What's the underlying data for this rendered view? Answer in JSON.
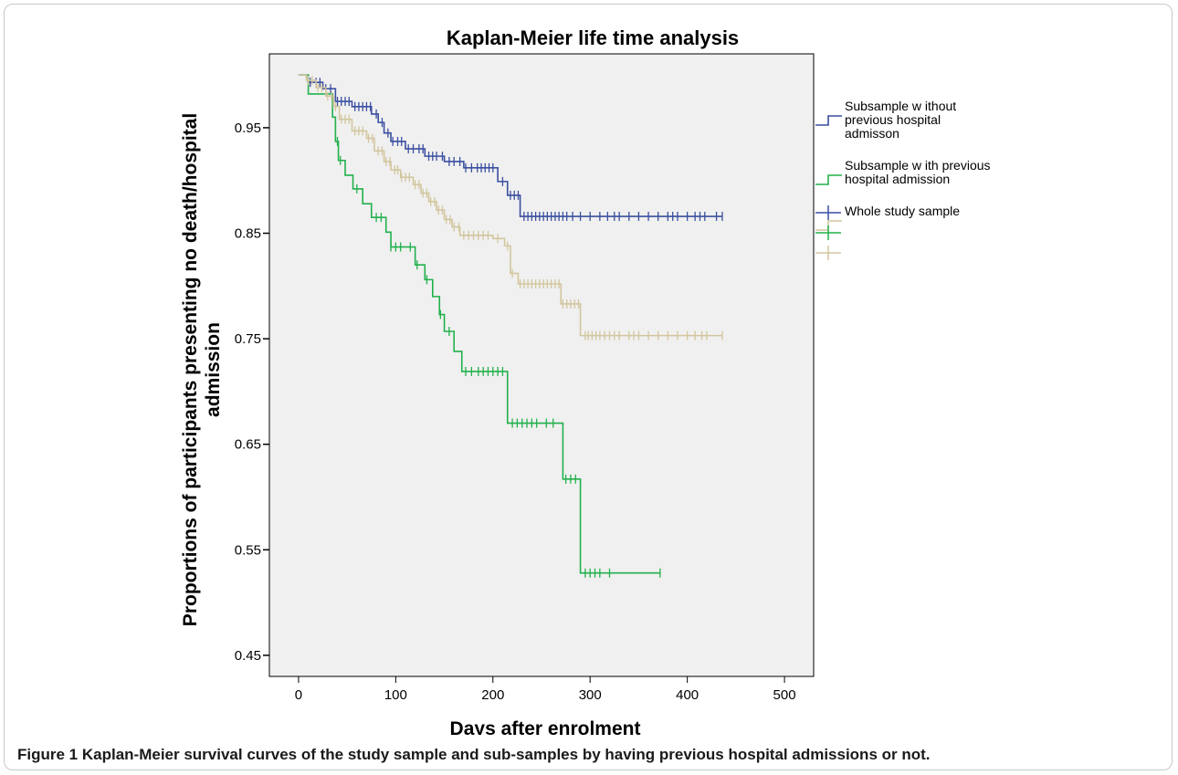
{
  "caption": {
    "label": "Figure 1",
    "text": "Kaplan-Meier survival curves of the study sample and sub-samples by having previous hospital admissions or not."
  },
  "chart_data": {
    "type": "line",
    "title": "Kaplan-Meier life time analysis",
    "xlabel": "Days after enrolment",
    "ylabel_lines": [
      "Proportions of participants presenting no death/hospital",
      "admission"
    ],
    "xlim": [
      -30,
      530
    ],
    "ylim": [
      0.43,
      1.02
    ],
    "xticks": [
      0,
      100,
      200,
      300,
      400,
      500
    ],
    "yticks": [
      0.45,
      0.55,
      0.65,
      0.75,
      0.85,
      0.95
    ],
    "ytick_labels": [
      "0.45",
      "0.55",
      "0.65",
      "0.75",
      "0.85",
      "0.95"
    ],
    "plot_background": "#f0f0f0",
    "grid": false,
    "legend_placement": "right",
    "series": [
      {
        "legend_lines": [
          "Subsample w ithout",
          "previous hospital",
          "admisson"
        ],
        "color": "#3a4fa0",
        "steps": [
          [
            0,
            1.0
          ],
          [
            10,
            0.993
          ],
          [
            25,
            0.987
          ],
          [
            38,
            0.975
          ],
          [
            55,
            0.97
          ],
          [
            75,
            0.963
          ],
          [
            82,
            0.955
          ],
          [
            88,
            0.945
          ],
          [
            95,
            0.937
          ],
          [
            110,
            0.93
          ],
          [
            130,
            0.923
          ],
          [
            150,
            0.918
          ],
          [
            170,
            0.912
          ],
          [
            205,
            0.899
          ],
          [
            215,
            0.886
          ],
          [
            228,
            0.866
          ],
          [
            436,
            0.866
          ]
        ],
        "censor_x": [
          12,
          18,
          22,
          28,
          33,
          40,
          44,
          48,
          52,
          58,
          62,
          66,
          70,
          74,
          80,
          86,
          92,
          97,
          102,
          106,
          113,
          118,
          124,
          128,
          134,
          138,
          142,
          148,
          155,
          160,
          166,
          172,
          178,
          184,
          188,
          192,
          196,
          200,
          210,
          218,
          222,
          226,
          232,
          236,
          240,
          244,
          248,
          252,
          256,
          260,
          264,
          268,
          272,
          276,
          282,
          290,
          300,
          310,
          318,
          325,
          330,
          340,
          350,
          360,
          370,
          380,
          385,
          390,
          400,
          408,
          413,
          418,
          430,
          436
        ]
      },
      {
        "legend_lines": [
          "Subsample w ith previous",
          "hospital admission"
        ],
        "color": "#22b14c",
        "steps": [
          [
            0,
            1.0
          ],
          [
            10,
            0.982
          ],
          [
            35,
            0.96
          ],
          [
            38,
            0.937
          ],
          [
            41,
            0.919
          ],
          [
            48,
            0.905
          ],
          [
            56,
            0.892
          ],
          [
            66,
            0.878
          ],
          [
            75,
            0.865
          ],
          [
            90,
            0.851
          ],
          [
            95,
            0.837
          ],
          [
            120,
            0.82
          ],
          [
            130,
            0.806
          ],
          [
            138,
            0.79
          ],
          [
            145,
            0.773
          ],
          [
            150,
            0.757
          ],
          [
            160,
            0.738
          ],
          [
            168,
            0.719
          ],
          [
            215,
            0.67
          ],
          [
            272,
            0.617
          ],
          [
            290,
            0.528
          ],
          [
            372,
            0.528
          ]
        ],
        "censor_x": [
          40,
          43,
          60,
          80,
          85,
          95,
          100,
          105,
          115,
          122,
          132,
          146,
          155,
          172,
          178,
          185,
          190,
          195,
          200,
          205,
          210,
          220,
          225,
          230,
          235,
          240,
          245,
          255,
          262,
          275,
          280,
          285,
          295,
          300,
          305,
          310,
          320,
          372
        ]
      },
      {
        "legend_lines": [
          "Whole study sample"
        ],
        "color": "#d2c69e",
        "steps": [
          [
            0,
            1.0
          ],
          [
            8,
            0.995
          ],
          [
            18,
            0.988
          ],
          [
            28,
            0.98
          ],
          [
            36,
            0.97
          ],
          [
            42,
            0.958
          ],
          [
            55,
            0.947
          ],
          [
            70,
            0.94
          ],
          [
            78,
            0.928
          ],
          [
            88,
            0.918
          ],
          [
            95,
            0.91
          ],
          [
            105,
            0.903
          ],
          [
            118,
            0.896
          ],
          [
            126,
            0.888
          ],
          [
            134,
            0.88
          ],
          [
            142,
            0.872
          ],
          [
            150,
            0.863
          ],
          [
            158,
            0.856
          ],
          [
            166,
            0.848
          ],
          [
            200,
            0.845
          ],
          [
            212,
            0.838
          ],
          [
            218,
            0.812
          ],
          [
            226,
            0.802
          ],
          [
            270,
            0.783
          ],
          [
            290,
            0.753
          ],
          [
            436,
            0.753
          ]
        ],
        "censor_x": [
          10,
          14,
          20,
          24,
          30,
          34,
          38,
          44,
          48,
          52,
          58,
          62,
          66,
          72,
          76,
          82,
          86,
          90,
          94,
          99,
          102,
          106,
          110,
          114,
          120,
          124,
          128,
          132,
          136,
          140,
          144,
          148,
          152,
          156,
          160,
          165,
          170,
          175,
          180,
          185,
          190,
          195,
          205,
          215,
          220,
          228,
          232,
          236,
          240,
          244,
          248,
          252,
          256,
          260,
          264,
          268,
          272,
          276,
          280,
          284,
          288,
          295,
          298,
          302,
          306,
          310,
          315,
          320,
          325,
          330,
          340,
          345,
          350,
          360,
          370,
          380,
          390,
          400,
          408,
          415,
          420,
          436
        ]
      }
    ]
  }
}
